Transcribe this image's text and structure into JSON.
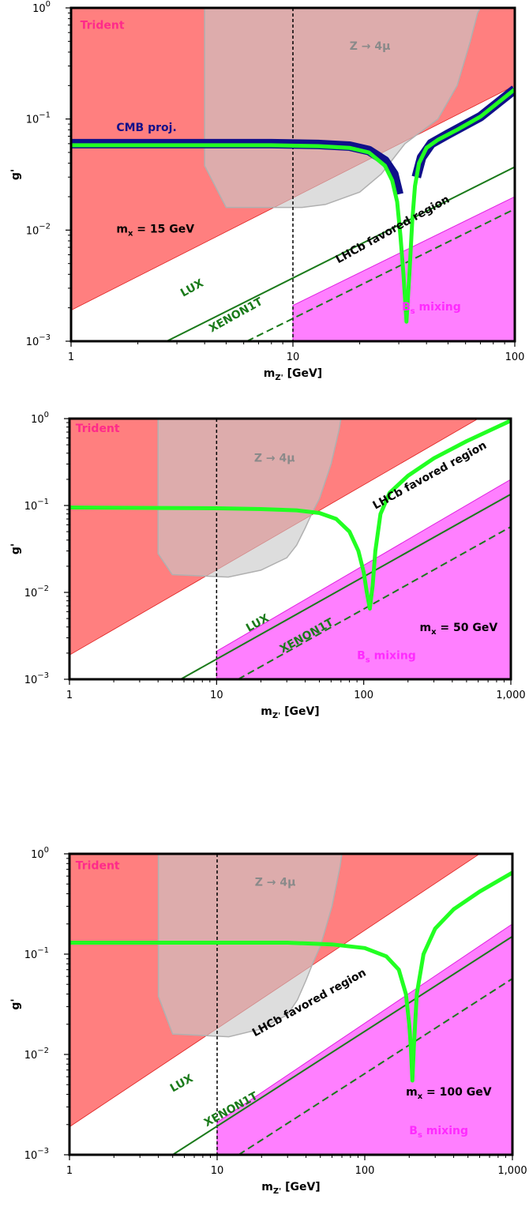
{
  "chart_data": [
    {
      "type": "line",
      "xlabel_main": "m",
      "xlabel_sub": "Z'",
      "xlabel_unit": " [GeV]",
      "ylabel": "g'",
      "xscale": "log",
      "yscale": "log",
      "xlim": [
        1,
        100
      ],
      "ylim": [
        0.001,
        1
      ],
      "x_ticks": [
        {
          "v": 1,
          "label": "1"
        },
        {
          "v": 10,
          "label": "10"
        },
        {
          "v": 100,
          "label": "100"
        }
      ],
      "y_ticks": [
        {
          "v": 1,
          "mant": "10",
          "exp": "0"
        },
        {
          "v": 0.1,
          "mant": "10",
          "exp": "−1"
        },
        {
          "v": 0.01,
          "mant": "10",
          "exp": "−2"
        },
        {
          "v": 0.001,
          "mant": "10",
          "exp": "−3"
        }
      ],
      "vline_x": 10,
      "regions": {
        "trident": {
          "color": "#ff7f7f",
          "points": [
            [
              1,
              1
            ],
            [
              100,
              1
            ],
            [
              100,
              0.2
            ],
            [
              1,
              0.0019
            ]
          ]
        },
        "z4mu": {
          "color": "#c8c8c8",
          "points": [
            [
              4,
              1
            ],
            [
              70,
              1
            ],
            [
              68,
              0.9
            ],
            [
              63,
              0.5
            ],
            [
              55,
              0.2
            ],
            [
              45,
              0.1
            ],
            [
              32,
              0.06
            ],
            [
              25,
              0.032
            ],
            [
              20,
              0.022
            ],
            [
              14,
              0.017
            ],
            [
              11,
              0.016
            ],
            [
              5,
              0.016
            ],
            [
              4,
              0.038
            ]
          ]
        },
        "bs_mixing": {
          "color": "#ff7fff",
          "points": [
            [
              10,
              0.0021
            ],
            [
              100,
              0.02
            ],
            [
              100,
              0.001
            ],
            [
              10,
              0.001
            ]
          ]
        }
      },
      "lux": {
        "color": "#1a7a1a",
        "points": [
          [
            2.7,
            0.001
          ],
          [
            100,
            0.037
          ]
        ]
      },
      "xenon": {
        "color": "#1a7a1a",
        "points": [
          [
            6.2,
            0.001
          ],
          [
            100,
            0.0155
          ]
        ]
      },
      "cmb": {
        "color": "#10108a",
        "segments": [
          [
            [
              1,
              0.06
            ],
            [
              8,
              0.06
            ],
            [
              13,
              0.059
            ],
            [
              18,
              0.057
            ],
            [
              22,
              0.052
            ],
            [
              26,
              0.042
            ],
            [
              28.5,
              0.032
            ],
            [
              30,
              0.021
            ]
          ],
          [
            [
              36,
              0.03
            ],
            [
              38,
              0.045
            ],
            [
              42,
              0.06
            ],
            [
              50,
              0.073
            ],
            [
              70,
              0.105
            ],
            [
              100,
              0.185
            ]
          ]
        ]
      },
      "green_curve": {
        "color": "#22ff22",
        "points": [
          [
            1,
            0.058
          ],
          [
            8,
            0.058
          ],
          [
            13,
            0.057
          ],
          [
            18,
            0.055
          ],
          [
            22,
            0.05
          ],
          [
            26,
            0.038
          ],
          [
            28,
            0.028
          ],
          [
            29.5,
            0.018
          ],
          [
            30.5,
            0.009
          ],
          [
            31.5,
            0.004
          ],
          [
            32.5,
            0.0015
          ],
          [
            33.5,
            0.004
          ],
          [
            34.5,
            0.012
          ],
          [
            35.5,
            0.025
          ],
          [
            37,
            0.04
          ],
          [
            40,
            0.055
          ],
          [
            45,
            0.065
          ],
          [
            55,
            0.08
          ],
          [
            70,
            0.105
          ],
          [
            100,
            0.185
          ]
        ]
      },
      "labels": [
        {
          "text": "Trident",
          "x": 1.1,
          "y": 0.65,
          "color": "#ff2a8a",
          "rot": 0
        },
        {
          "text": "Z → 4μ",
          "x": 18,
          "y": 0.42,
          "color": "#8a8a8a",
          "rot": 0
        },
        {
          "text": "CMB proj.",
          "x": 1.6,
          "y": 0.078,
          "color": "#10108a",
          "rot": 0
        },
        {
          "text": "LHCb favored region",
          "x": 16,
          "y": 0.005,
          "color": "#000000",
          "rot": -29
        },
        {
          "text": "LUX",
          "x": 3.2,
          "y": 0.0025,
          "color": "#1a7a1a",
          "rot": -29
        },
        {
          "text": "XENON1T",
          "x": 4.3,
          "y": 0.0012,
          "color": "#1a7a1a",
          "rot": -29
        }
      ],
      "mx_label": {
        "pre": "m",
        "sub": "x",
        "post": " = 15 GeV",
        "x": 1.6,
        "y": 0.0095
      },
      "bs_label": {
        "pre": "B",
        "sub": "s",
        "post": " mixing",
        "x": 31,
        "y": 0.0019,
        "color": "#ff2aff"
      }
    },
    {
      "type": "line",
      "xlabel_main": "m",
      "xlabel_sub": "Z'",
      "xlabel_unit": " [GeV]",
      "ylabel": "g'",
      "xscale": "log",
      "yscale": "log",
      "xlim": [
        1,
        1000
      ],
      "ylim": [
        0.001,
        1
      ],
      "x_ticks": [
        {
          "v": 1,
          "label": "1"
        },
        {
          "v": 10,
          "label": "10"
        },
        {
          "v": 100,
          "label": "100"
        },
        {
          "v": 1000,
          "label": "1,000"
        }
      ],
      "y_ticks": [
        {
          "v": 1,
          "mant": "10",
          "exp": "0"
        },
        {
          "v": 0.1,
          "mant": "10",
          "exp": "−1"
        },
        {
          "v": 0.01,
          "mant": "10",
          "exp": "−2"
        },
        {
          "v": 0.001,
          "mant": "10",
          "exp": "−3"
        }
      ],
      "vline_x": 10,
      "regions": {
        "trident": {
          "color": "#ff7f7f",
          "points": [
            [
              1,
              1
            ],
            [
              600,
              1
            ],
            [
              1,
              0.0019
            ]
          ]
        },
        "z4mu": {
          "color": "#c8c8c8",
          "points": [
            [
              4,
              1
            ],
            [
              70,
              1
            ],
            [
              68,
              0.75
            ],
            [
              60,
              0.3
            ],
            [
              50,
              0.12
            ],
            [
              45,
              0.085
            ],
            [
              40,
              0.055
            ],
            [
              35,
              0.035
            ],
            [
              30,
              0.025
            ],
            [
              20,
              0.018
            ],
            [
              12,
              0.015
            ],
            [
              5,
              0.016
            ],
            [
              4,
              0.028
            ]
          ]
        },
        "bs_mixing": {
          "color": "#ff7fff",
          "points": [
            [
              10,
              0.0021
            ],
            [
              1000,
              0.2
            ],
            [
              1000,
              0.001
            ],
            [
              10,
              0.001
            ]
          ]
        }
      },
      "lux": {
        "color": "#1a7a1a",
        "points": [
          [
            5.7,
            0.001
          ],
          [
            1000,
            0.135
          ]
        ]
      },
      "xenon": {
        "color": "#1a7a1a",
        "points": [
          [
            14,
            0.001
          ],
          [
            1000,
            0.057
          ]
        ]
      },
      "cmb": null,
      "green_curve": {
        "color": "#22ff22",
        "points": [
          [
            1,
            0.095
          ],
          [
            10,
            0.093
          ],
          [
            20,
            0.091
          ],
          [
            35,
            0.088
          ],
          [
            50,
            0.082
          ],
          [
            65,
            0.07
          ],
          [
            80,
            0.05
          ],
          [
            92,
            0.03
          ],
          [
            100,
            0.017
          ],
          [
            105,
            0.01
          ],
          [
            110,
            0.0065
          ],
          [
            115,
            0.012
          ],
          [
            120,
            0.03
          ],
          [
            130,
            0.08
          ],
          [
            150,
            0.14
          ],
          [
            200,
            0.22
          ],
          [
            300,
            0.35
          ],
          [
            500,
            0.55
          ],
          [
            1000,
            0.95
          ]
        ]
      },
      "labels": [
        {
          "text": "Trident",
          "x": 1.1,
          "y": 0.7,
          "color": "#ff2a8a",
          "rot": 0
        },
        {
          "text": "Z → 4μ",
          "x": 18,
          "y": 0.32,
          "color": "#8a8a8a",
          "rot": 0
        },
        {
          "text": "LHCb favored region",
          "x": 120,
          "y": 0.09,
          "color": "#000000",
          "rot": -29
        },
        {
          "text": "LUX",
          "x": 16.5,
          "y": 0.0035,
          "color": "#1a7a1a",
          "rot": -29
        },
        {
          "text": "XENON1T",
          "x": 28,
          "y": 0.002,
          "color": "#1a7a1a",
          "rot": -29
        }
      ],
      "mx_label": {
        "pre": "m",
        "sub": "x",
        "post": " = 50 GeV",
        "x": 240,
        "y": 0.0036
      },
      "bs_label": {
        "pre": "B",
        "sub": "s",
        "post": " mixing",
        "x": 90,
        "y": 0.0017,
        "color": "#ff2aff"
      }
    },
    {
      "type": "line",
      "xlabel_main": "m",
      "xlabel_sub": "Z'",
      "xlabel_unit": " [GeV]",
      "ylabel": "g'",
      "xscale": "log",
      "yscale": "log",
      "xlim": [
        1,
        1000
      ],
      "ylim": [
        0.001,
        1
      ],
      "x_ticks": [
        {
          "v": 1,
          "label": "1"
        },
        {
          "v": 10,
          "label": "10"
        },
        {
          "v": 100,
          "label": "100"
        },
        {
          "v": 1000,
          "label": "1,000"
        }
      ],
      "y_ticks": [
        {
          "v": 1,
          "mant": "10",
          "exp": "0"
        },
        {
          "v": 0.1,
          "mant": "10",
          "exp": "−1"
        },
        {
          "v": 0.01,
          "mant": "10",
          "exp": "−2"
        },
        {
          "v": 0.001,
          "mant": "10",
          "exp": "−3"
        }
      ],
      "vline_x": 10,
      "regions": {
        "trident": {
          "color": "#ff7f7f",
          "points": [
            [
              1,
              1
            ],
            [
              600,
              1
            ],
            [
              1,
              0.0019
            ]
          ]
        },
        "z4mu": {
          "color": "#c8c8c8",
          "points": [
            [
              4,
              1
            ],
            [
              70,
              1
            ],
            [
              68,
              0.75
            ],
            [
              60,
              0.3
            ],
            [
              50,
              0.12
            ],
            [
              45,
              0.085
            ],
            [
              40,
              0.055
            ],
            [
              35,
              0.035
            ],
            [
              30,
              0.025
            ],
            [
              20,
              0.018
            ],
            [
              12,
              0.015
            ],
            [
              5,
              0.016
            ],
            [
              4,
              0.038
            ]
          ]
        },
        "bs_mixing": {
          "color": "#ff7fff",
          "points": [
            [
              10,
              0.0021
            ],
            [
              1000,
              0.2
            ],
            [
              1000,
              0.001
            ],
            [
              10,
              0.001
            ]
          ]
        }
      },
      "lux": {
        "color": "#1a7a1a",
        "points": [
          [
            5,
            0.001
          ],
          [
            1000,
            0.15
          ]
        ]
      },
      "xenon": {
        "color": "#1a7a1a",
        "points": [
          [
            14,
            0.001
          ],
          [
            1000,
            0.057
          ]
        ]
      },
      "cmb": null,
      "green_curve": {
        "color": "#22ff22",
        "points": [
          [
            1,
            0.13
          ],
          [
            10,
            0.13
          ],
          [
            30,
            0.13
          ],
          [
            60,
            0.125
          ],
          [
            100,
            0.115
          ],
          [
            140,
            0.095
          ],
          [
            170,
            0.07
          ],
          [
            190,
            0.04
          ],
          [
            200,
            0.02
          ],
          [
            205,
            0.012
          ],
          [
            210,
            0.0055
          ],
          [
            215,
            0.012
          ],
          [
            225,
            0.04
          ],
          [
            250,
            0.1
          ],
          [
            300,
            0.18
          ],
          [
            400,
            0.28
          ],
          [
            600,
            0.42
          ],
          [
            1000,
            0.65
          ]
        ]
      },
      "labels": [
        {
          "text": "Trident",
          "x": 1.1,
          "y": 0.7,
          "color": "#ff2a8a",
          "rot": 0
        },
        {
          "text": "Z → 4μ",
          "x": 18,
          "y": 0.48,
          "color": "#8a8a8a",
          "rot": 0
        },
        {
          "text": "LHCb favored region",
          "x": 18,
          "y": 0.015,
          "color": "#000000",
          "rot": -29
        },
        {
          "text": "LUX",
          "x": 5,
          "y": 0.0042,
          "color": "#1a7a1a",
          "rot": -29
        },
        {
          "text": "XENON1T",
          "x": 8.5,
          "y": 0.0019,
          "color": "#1a7a1a",
          "rot": -29
        }
      ],
      "mx_label": {
        "pre": "m",
        "sub": "x",
        "post": " = 100 GeV",
        "x": 190,
        "y": 0.0039
      },
      "bs_label": {
        "pre": "B",
        "sub": "s",
        "post": " mixing",
        "x": 200,
        "y": 0.0016,
        "color": "#ff2aff"
      }
    }
  ]
}
